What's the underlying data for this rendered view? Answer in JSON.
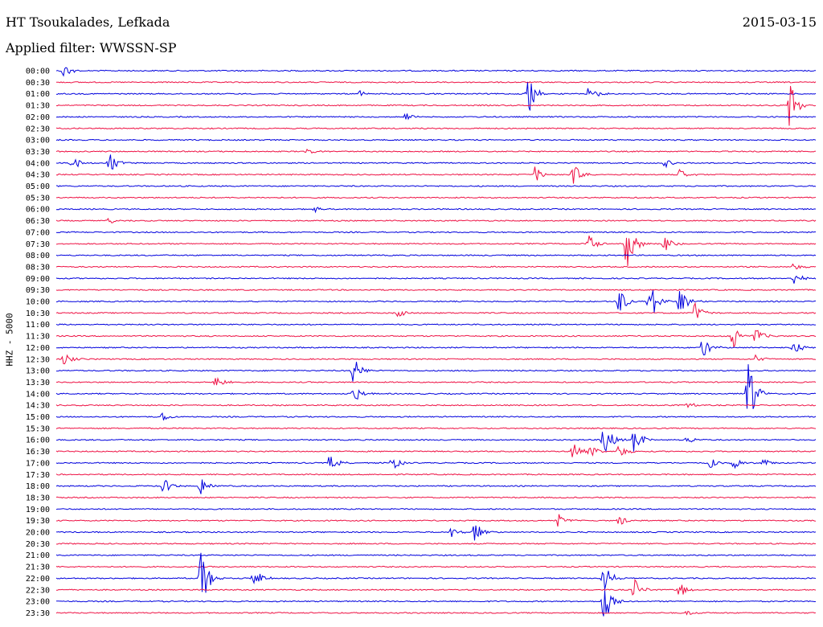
{
  "header": {
    "station": "HT Tsoukalades, Lefkada",
    "date": "2015-03-15",
    "filter": "Applied filter: WWSSN-SP"
  },
  "colors": {
    "blue": "#0000dd",
    "red": "#ee1144"
  },
  "chart_data": {
    "type": "line",
    "ylabel": "HHZ - 5000",
    "trace_colors": [
      "blue",
      "red"
    ],
    "rows": [
      "00:00",
      "00:30",
      "01:00",
      "01:30",
      "02:00",
      "02:30",
      "03:00",
      "03:30",
      "04:00",
      "04:30",
      "05:00",
      "05:30",
      "06:00",
      "06:30",
      "07:00",
      "07:30",
      "08:00",
      "08:30",
      "09:00",
      "09:30",
      "10:00",
      "10:30",
      "11:00",
      "11:30",
      "12:00",
      "12:30",
      "13:00",
      "13:30",
      "14:00",
      "14:30",
      "15:00",
      "15:30",
      "16:00",
      "16:30",
      "17:00",
      "17:30",
      "18:00",
      "18:30",
      "19:00",
      "19:30",
      "20:00",
      "20:30",
      "21:00",
      "21:30",
      "22:00",
      "22:30",
      "23:00",
      "23:30"
    ],
    "events": [
      {
        "row": 0,
        "t": 0.01,
        "amp": 0.7
      },
      {
        "row": 2,
        "t": 0.4,
        "amp": 0.3
      },
      {
        "row": 2,
        "t": 0.62,
        "amp": 2.3
      },
      {
        "row": 2,
        "t": 0.7,
        "amp": 0.9
      },
      {
        "row": 3,
        "t": 0.965,
        "amp": 2.5
      },
      {
        "row": 4,
        "t": 0.46,
        "amp": 0.4
      },
      {
        "row": 7,
        "t": 0.33,
        "amp": 0.3
      },
      {
        "row": 8,
        "t": 0.02,
        "amp": 0.8
      },
      {
        "row": 8,
        "t": 0.07,
        "amp": 0.9
      },
      {
        "row": 8,
        "t": 0.8,
        "amp": 0.4
      },
      {
        "row": 9,
        "t": 0.63,
        "amp": 0.8
      },
      {
        "row": 9,
        "t": 0.68,
        "amp": 1.1
      },
      {
        "row": 9,
        "t": 0.82,
        "amp": 0.5
      },
      {
        "row": 12,
        "t": 0.34,
        "amp": 0.3
      },
      {
        "row": 13,
        "t": 0.07,
        "amp": 0.3
      },
      {
        "row": 15,
        "t": 0.7,
        "amp": 1.0
      },
      {
        "row": 15,
        "t": 0.75,
        "amp": 2.5
      },
      {
        "row": 15,
        "t": 0.8,
        "amp": 0.8
      },
      {
        "row": 17,
        "t": 0.97,
        "amp": 0.4
      },
      {
        "row": 18,
        "t": 0.97,
        "amp": 0.6
      },
      {
        "row": 20,
        "t": 0.74,
        "amp": 1.4
      },
      {
        "row": 20,
        "t": 0.78,
        "amp": 2.2
      },
      {
        "row": 20,
        "t": 0.82,
        "amp": 1.5
      },
      {
        "row": 21,
        "t": 0.45,
        "amp": 0.5
      },
      {
        "row": 21,
        "t": 0.84,
        "amp": 1.0
      },
      {
        "row": 23,
        "t": 0.89,
        "amp": 1.3
      },
      {
        "row": 23,
        "t": 0.92,
        "amp": 0.8
      },
      {
        "row": 24,
        "t": 0.85,
        "amp": 1.0
      },
      {
        "row": 24,
        "t": 0.97,
        "amp": 0.8
      },
      {
        "row": 25,
        "t": 0.01,
        "amp": 0.6
      },
      {
        "row": 25,
        "t": 0.92,
        "amp": 0.4
      },
      {
        "row": 26,
        "t": 0.39,
        "amp": 1.5
      },
      {
        "row": 27,
        "t": 0.21,
        "amp": 0.8
      },
      {
        "row": 28,
        "t": 0.39,
        "amp": 1.0
      },
      {
        "row": 28,
        "t": 0.91,
        "amp": 3.0
      },
      {
        "row": 29,
        "t": 0.83,
        "amp": 0.3
      },
      {
        "row": 30,
        "t": 0.14,
        "amp": 0.5
      },
      {
        "row": 32,
        "t": 0.72,
        "amp": 2.0
      },
      {
        "row": 32,
        "t": 0.76,
        "amp": 1.6
      },
      {
        "row": 32,
        "t": 0.83,
        "amp": 0.4
      },
      {
        "row": 33,
        "t": 0.68,
        "amp": 1.2
      },
      {
        "row": 33,
        "t": 0.7,
        "amp": 0.9
      },
      {
        "row": 33,
        "t": 0.74,
        "amp": 0.7
      },
      {
        "row": 34,
        "t": 0.36,
        "amp": 0.8
      },
      {
        "row": 34,
        "t": 0.44,
        "amp": 0.9
      },
      {
        "row": 34,
        "t": 0.86,
        "amp": 0.5
      },
      {
        "row": 34,
        "t": 0.89,
        "amp": 0.7
      },
      {
        "row": 34,
        "t": 0.93,
        "amp": 0.5
      },
      {
        "row": 36,
        "t": 0.14,
        "amp": 0.9
      },
      {
        "row": 36,
        "t": 0.19,
        "amp": 1.0
      },
      {
        "row": 39,
        "t": 0.66,
        "amp": 0.6
      },
      {
        "row": 39,
        "t": 0.74,
        "amp": 0.5
      },
      {
        "row": 40,
        "t": 0.52,
        "amp": 0.6
      },
      {
        "row": 40,
        "t": 0.55,
        "amp": 1.0
      },
      {
        "row": 44,
        "t": 0.19,
        "amp": 3.0
      },
      {
        "row": 44,
        "t": 0.26,
        "amp": 1.0
      },
      {
        "row": 44,
        "t": 0.72,
        "amp": 1.5
      },
      {
        "row": 45,
        "t": 0.76,
        "amp": 1.0
      },
      {
        "row": 45,
        "t": 0.82,
        "amp": 0.7
      },
      {
        "row": 46,
        "t": 0.72,
        "amp": 2.3
      },
      {
        "row": 47,
        "t": 0.83,
        "amp": 0.3
      }
    ]
  }
}
